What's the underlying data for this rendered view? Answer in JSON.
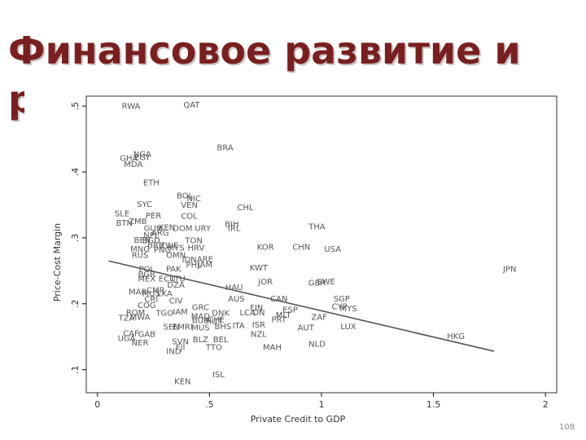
{
  "slide": {
    "title": "Финансовое развитие и рост",
    "page_number": "108"
  },
  "chart_data": {
    "type": "scatter",
    "title": "",
    "xlabel": "Private Credit to GDP",
    "ylabel": "Price-Cost Margin",
    "xlim": [
      -0.05,
      2.05
    ],
    "ylim": [
      0.065,
      0.515
    ],
    "x_ticks": [
      0,
      0.5,
      1,
      1.5,
      2
    ],
    "x_tick_labels": [
      "0",
      ".5",
      "1",
      "1.5",
      "2"
    ],
    "y_ticks": [
      0.1,
      0.2,
      0.3,
      0.4,
      0.5
    ],
    "y_tick_labels": [
      ".1",
      ".2",
      ".3",
      ".4",
      ".5"
    ],
    "grid": true,
    "marker": "country-code labels",
    "fit_line": {
      "x": [
        0.05,
        1.77
      ],
      "y": [
        0.265,
        0.128
      ]
    },
    "points": [
      {
        "label": "RWA",
        "x": 0.15,
        "y": 0.5
      },
      {
        "label": "QAT",
        "x": 0.42,
        "y": 0.502
      },
      {
        "label": "BRA",
        "x": 0.57,
        "y": 0.437
      },
      {
        "label": "NGA",
        "x": 0.2,
        "y": 0.427
      },
      {
        "label": "GHA",
        "x": 0.14,
        "y": 0.421
      },
      {
        "label": "EGY",
        "x": 0.2,
        "y": 0.422
      },
      {
        "label": "MDA",
        "x": 0.16,
        "y": 0.412
      },
      {
        "label": "ETH",
        "x": 0.24,
        "y": 0.384
      },
      {
        "label": "BOL",
        "x": 0.39,
        "y": 0.364
      },
      {
        "label": "NIC",
        "x": 0.43,
        "y": 0.36
      },
      {
        "label": "SYC",
        "x": 0.21,
        "y": 0.351
      },
      {
        "label": "VEN",
        "x": 0.41,
        "y": 0.35
      },
      {
        "label": "CHL",
        "x": 0.66,
        "y": 0.346
      },
      {
        "label": "SLE",
        "x": 0.11,
        "y": 0.337
      },
      {
        "label": "PER",
        "x": 0.25,
        "y": 0.334
      },
      {
        "label": "COL",
        "x": 0.41,
        "y": 0.333
      },
      {
        "label": "BTN",
        "x": 0.12,
        "y": 0.323
      },
      {
        "label": "ZMB",
        "x": 0.18,
        "y": 0.325
      },
      {
        "label": "BIH",
        "x": 0.6,
        "y": 0.321
      },
      {
        "label": "THA",
        "x": 0.98,
        "y": 0.317
      },
      {
        "label": "GUM",
        "x": 0.25,
        "y": 0.315
      },
      {
        "label": "KEN",
        "x": 0.31,
        "y": 0.316
      },
      {
        "label": "DOM",
        "x": 0.38,
        "y": 0.315
      },
      {
        "label": "URY",
        "x": 0.47,
        "y": 0.315
      },
      {
        "label": "IRL",
        "x": 0.61,
        "y": 0.315
      },
      {
        "label": "ARG",
        "x": 0.28,
        "y": 0.308
      },
      {
        "label": "NPL",
        "x": 0.24,
        "y": 0.304
      },
      {
        "label": "BEN",
        "x": 0.2,
        "y": 0.297
      },
      {
        "label": "BGD",
        "x": 0.24,
        "y": 0.296
      },
      {
        "label": "TON",
        "x": 0.43,
        "y": 0.296
      },
      {
        "label": "BRB",
        "x": 0.26,
        "y": 0.289
      },
      {
        "label": "ZWE",
        "x": 0.32,
        "y": 0.289
      },
      {
        "label": "KOR",
        "x": 0.75,
        "y": 0.286
      },
      {
        "label": "CHN",
        "x": 0.91,
        "y": 0.286
      },
      {
        "label": "MNG",
        "x": 0.19,
        "y": 0.283
      },
      {
        "label": "PNG",
        "x": 0.29,
        "y": 0.282
      },
      {
        "label": "MYS",
        "x": 0.35,
        "y": 0.285
      },
      {
        "label": "HRV",
        "x": 0.44,
        "y": 0.285
      },
      {
        "label": "USA",
        "x": 1.05,
        "y": 0.283
      },
      {
        "label": "RUS",
        "x": 0.19,
        "y": 0.274
      },
      {
        "label": "OMN",
        "x": 0.35,
        "y": 0.274
      },
      {
        "label": "IDN",
        "x": 0.41,
        "y": 0.267
      },
      {
        "label": "ARE",
        "x": 0.48,
        "y": 0.268
      },
      {
        "label": "PHL",
        "x": 0.43,
        "y": 0.259
      },
      {
        "label": "JAM",
        "x": 0.48,
        "y": 0.26
      },
      {
        "label": "KWT",
        "x": 0.72,
        "y": 0.255
      },
      {
        "label": "POL",
        "x": 0.22,
        "y": 0.253
      },
      {
        "label": "PAK",
        "x": 0.34,
        "y": 0.253
      },
      {
        "label": "JPN",
        "x": 1.84,
        "y": 0.253
      },
      {
        "label": "BGR",
        "x": 0.22,
        "y": 0.245
      },
      {
        "label": "MEX",
        "x": 0.22,
        "y": 0.238
      },
      {
        "label": "ECU",
        "x": 0.31,
        "y": 0.238
      },
      {
        "label": "LTU",
        "x": 0.36,
        "y": 0.238
      },
      {
        "label": "JOR",
        "x": 0.75,
        "y": 0.234
      },
      {
        "label": "GBR",
        "x": 0.98,
        "y": 0.232
      },
      {
        "label": "SWE",
        "x": 1.02,
        "y": 0.234
      },
      {
        "label": "DZA",
        "x": 0.35,
        "y": 0.229
      },
      {
        "label": "MAR",
        "x": 0.18,
        "y": 0.218
      },
      {
        "label": "CMR",
        "x": 0.26,
        "y": 0.221
      },
      {
        "label": "MUS",
        "x": 0.24,
        "y": 0.216
      },
      {
        "label": "LKA",
        "x": 0.3,
        "y": 0.216
      },
      {
        "label": "HAU",
        "x": 0.61,
        "y": 0.225
      },
      {
        "label": "SGP",
        "x": 1.09,
        "y": 0.208
      },
      {
        "label": "CRI",
        "x": 0.24,
        "y": 0.207
      },
      {
        "label": "CIV",
        "x": 0.35,
        "y": 0.205
      },
      {
        "label": "AUS",
        "x": 0.62,
        "y": 0.208
      },
      {
        "label": "CAN",
        "x": 0.81,
        "y": 0.208
      },
      {
        "label": "COG",
        "x": 0.22,
        "y": 0.198
      },
      {
        "label": "GRC",
        "x": 0.46,
        "y": 0.195
      },
      {
        "label": "FIN",
        "x": 0.71,
        "y": 0.194
      },
      {
        "label": "CYP",
        "x": 1.08,
        "y": 0.196
      },
      {
        "label": "MYS",
        "x": 1.12,
        "y": 0.193
      },
      {
        "label": "ESP",
        "x": 0.86,
        "y": 0.191
      },
      {
        "label": "ROM",
        "x": 0.17,
        "y": 0.187
      },
      {
        "label": "TGO",
        "x": 0.3,
        "y": 0.186
      },
      {
        "label": "IAM",
        "x": 0.37,
        "y": 0.188
      },
      {
        "label": "DNK",
        "x": 0.55,
        "y": 0.186
      },
      {
        "label": "LCA",
        "x": 0.67,
        "y": 0.187
      },
      {
        "label": "DN",
        "x": 0.72,
        "y": 0.187
      },
      {
        "label": "MLT",
        "x": 0.83,
        "y": 0.183
      },
      {
        "label": "TZA",
        "x": 0.13,
        "y": 0.179
      },
      {
        "label": "MWA",
        "x": 0.19,
        "y": 0.18
      },
      {
        "label": "MAD",
        "x": 0.46,
        "y": 0.181
      },
      {
        "label": "ZAF",
        "x": 0.99,
        "y": 0.18
      },
      {
        "label": "PRT",
        "x": 0.81,
        "y": 0.176
      },
      {
        "label": "CHE",
        "x": 0.53,
        "y": 0.176
      },
      {
        "label": "BUR",
        "x": 0.46,
        "y": 0.175
      },
      {
        "label": "HUT",
        "x": 0.52,
        "y": 0.174
      },
      {
        "label": "SEN",
        "x": 0.33,
        "y": 0.165
      },
      {
        "label": "EMRI",
        "x": 0.38,
        "y": 0.165
      },
      {
        "label": "MUS",
        "x": 0.46,
        "y": 0.164
      },
      {
        "label": "BHS",
        "x": 0.56,
        "y": 0.166
      },
      {
        "label": "ITA",
        "x": 0.63,
        "y": 0.167
      },
      {
        "label": "ISR",
        "x": 0.72,
        "y": 0.168
      },
      {
        "label": "AUT",
        "x": 0.93,
        "y": 0.164
      },
      {
        "label": "LUX",
        "x": 1.12,
        "y": 0.166
      },
      {
        "label": "GAB",
        "x": 0.22,
        "y": 0.154
      },
      {
        "label": "CAF",
        "x": 0.15,
        "y": 0.155
      },
      {
        "label": "NZL",
        "x": 0.72,
        "y": 0.154
      },
      {
        "label": "UGA",
        "x": 0.13,
        "y": 0.148
      },
      {
        "label": "BLZ",
        "x": 0.46,
        "y": 0.146
      },
      {
        "label": "BEL",
        "x": 0.55,
        "y": 0.146
      },
      {
        "label": "HKG",
        "x": 1.6,
        "y": 0.151
      },
      {
        "label": "NER",
        "x": 0.19,
        "y": 0.141
      },
      {
        "label": "SVN",
        "x": 0.37,
        "y": 0.143
      },
      {
        "label": "FJI",
        "x": 0.37,
        "y": 0.134
      },
      {
        "label": "TTO",
        "x": 0.52,
        "y": 0.134
      },
      {
        "label": "MAH",
        "x": 0.78,
        "y": 0.134
      },
      {
        "label": "NLD",
        "x": 0.98,
        "y": 0.139
      },
      {
        "label": "IND",
        "x": 0.34,
        "y": 0.128
      },
      {
        "label": "ISL",
        "x": 0.54,
        "y": 0.093
      },
      {
        "label": "KEN",
        "x": 0.38,
        "y": 0.082
      }
    ]
  }
}
